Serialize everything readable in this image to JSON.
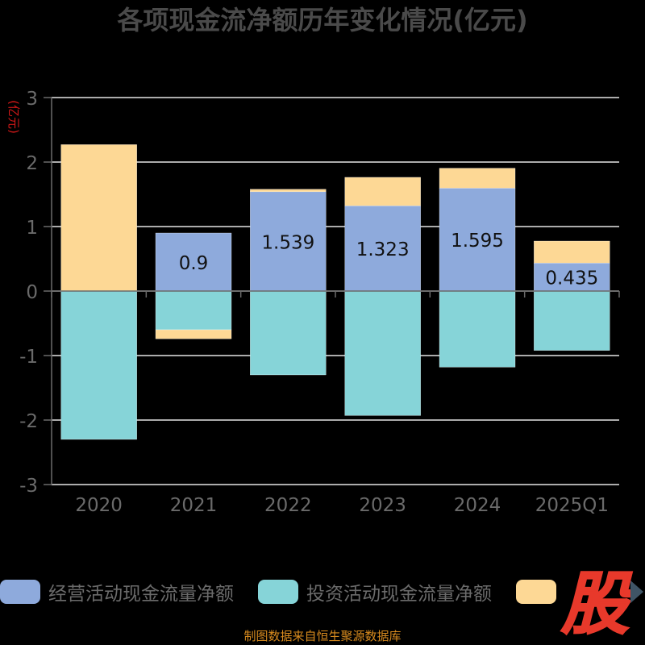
{
  "chart_data": {
    "type": "bar",
    "title": "各项现金流净额历年变化情况(亿元)",
    "ylabel": "(亿元)",
    "ylim": [
      -3,
      3
    ],
    "yticks": [
      3,
      2,
      1,
      0,
      -1,
      -2,
      -3
    ],
    "categories": [
      "2020",
      "2021",
      "2022",
      "2023",
      "2024",
      "2025Q1"
    ],
    "series": [
      {
        "name": "经营活动现金流量净额",
        "color": "#8eaadc",
        "values": [
          0.0,
          0.9,
          1.539,
          1.323,
          1.595,
          0.435
        ],
        "data_labels": [
          "",
          "0.9",
          "1.539",
          "1.323",
          "1.595",
          "0.435"
        ]
      },
      {
        "name": "投资活动现金流量净额",
        "color": "#86d4d8",
        "values": [
          -2.3,
          -0.6,
          -1.3,
          -1.93,
          -1.18,
          -0.92
        ],
        "data_labels": [
          "",
          "",
          "",
          "",
          "",
          ""
        ]
      },
      {
        "name": "",
        "color": "#fdd895",
        "values": [
          2.27,
          -0.14,
          0.04,
          0.44,
          0.31,
          0.34
        ],
        "data_labels": [
          "",
          "",
          "",
          "",
          "",
          ""
        ]
      }
    ],
    "grid": true,
    "legend_position": "bottom"
  },
  "footer": "制图数据来自恒生聚源数据库",
  "logo_text": "股"
}
